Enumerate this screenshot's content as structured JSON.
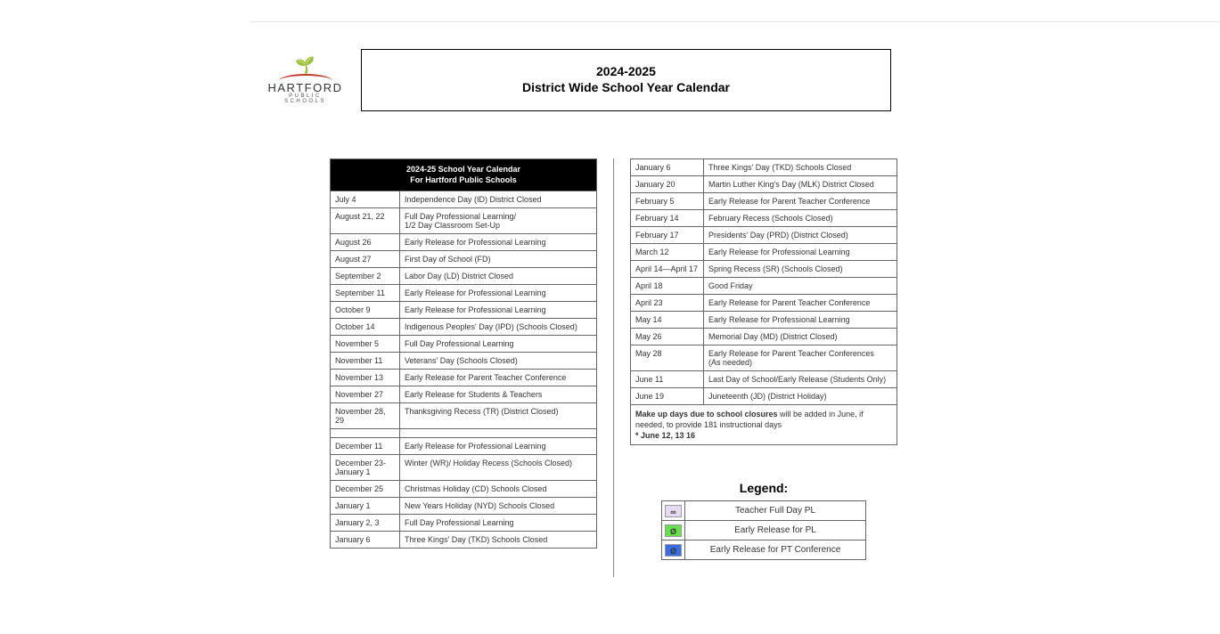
{
  "logo": {
    "main": "HARTFORD",
    "sub": "PUBLIC SCHOOLS"
  },
  "title": {
    "year": "2024-2025",
    "line": "District Wide School Year Calendar"
  },
  "left_header_line1": "2024-25 School Year Calendar",
  "left_header_line2": "For Hartford Public Schools",
  "left_rows": [
    {
      "date": "July 4",
      "desc": "Independence Day (ID) District Closed"
    },
    {
      "date": "August 21, 22",
      "desc": "Full Day Professional Learning/\n1/2 Day Classroom Set-Up"
    },
    {
      "date": "August 26",
      "desc": "Early Release for Professional Learning"
    },
    {
      "date": "August 27",
      "desc": "First Day of School (FD)"
    },
    {
      "date": "September 2",
      "desc": "Labor Day (LD) District Closed"
    },
    {
      "date": "September 11",
      "desc": "Early Release for Professional Learning"
    },
    {
      "date": "October 9",
      "desc": "Early Release for Professional Learning"
    },
    {
      "date": "October 14",
      "desc": "Indigenous Peoples' Day (IPD) (Schools Closed)"
    },
    {
      "date": "November 5",
      "desc": "Full Day Professional Learning"
    },
    {
      "date": "November 11",
      "desc": "Veterans' Day (Schools Closed)"
    },
    {
      "date": "November 13",
      "desc": "Early Release for Parent Teacher Conference"
    },
    {
      "date": "November 27",
      "desc": "Early Release for Students & Teachers"
    },
    {
      "date": "November 28, 29",
      "desc": "Thanksgiving Recess (TR) (District Closed)"
    }
  ],
  "left_rows2": [
    {
      "date": "December 11",
      "desc": "Early Release for Professional Learning"
    },
    {
      "date": "December 23- January 1",
      "desc": "Winter (WR)/ Holiday Recess (Schools Closed)"
    },
    {
      "date": "December 25",
      "desc": "Christmas Holiday (CD) Schools Closed"
    },
    {
      "date": "January 1",
      "desc": "New Years Holiday (NYD) Schools Closed"
    },
    {
      "date": "January 2, 3",
      "desc": "Full Day Professional Learning"
    },
    {
      "date": "January 6",
      "desc": "Three Kings' Day (TKD) Schools Closed"
    }
  ],
  "right_rows": [
    {
      "date": "January 6",
      "desc": "Three Kings' Day (TKD) Schools Closed"
    },
    {
      "date": "January 20",
      "desc": "Martin Luther King's Day (MLK) District Closed"
    },
    {
      "date": "February 5",
      "desc": "Early Release for Parent Teacher Conference"
    },
    {
      "date": "February 14",
      "desc": "February Recess (Schools Closed)"
    },
    {
      "date": "February 17",
      "desc": "Presidents' Day (PRD) (District Closed)"
    },
    {
      "date": "March 12",
      "desc": "Early Release for Professional Learning"
    },
    {
      "date": "April 14—April 17",
      "desc": "Spring Recess (SR) (Schools Closed)"
    },
    {
      "date": "April 18",
      "desc": "Good Friday"
    },
    {
      "date": "April 23",
      "desc": "Early Release for Parent Teacher Conference"
    },
    {
      "date": "May 14",
      "desc": "Early Release for Professional Learning"
    },
    {
      "date": "May 26",
      "desc": "Memorial Day (MD) (District Closed)"
    },
    {
      "date": "May 28",
      "desc": "Early Release for Parent Teacher Conferences\n(As needed)"
    },
    {
      "date": "June 11",
      "desc": "Last Day of School/Early Release (Students Only)"
    },
    {
      "date": "June 19",
      "desc": "Juneteenth (JD) (District Holiday)"
    }
  ],
  "note_bold": "Make up days due to school closures",
  "note_rest": " will be added in June, if needed, to provide 181 instructional days",
  "note_star": "* June 12, 13 16",
  "legend_title": "Legend:",
  "legend": [
    {
      "symbol": "∞",
      "bg": "#e6daf2",
      "label": "Teacher Full Day PL"
    },
    {
      "symbol": "Ø",
      "bg": "#66e04d",
      "label": "Early Release for PL"
    },
    {
      "symbol": "Ø",
      "bg": "#3a6de0",
      "label": "Early Release for PT Conference"
    }
  ],
  "colors": {
    "border": "#666666",
    "black": "#000000",
    "text": "#333333"
  }
}
